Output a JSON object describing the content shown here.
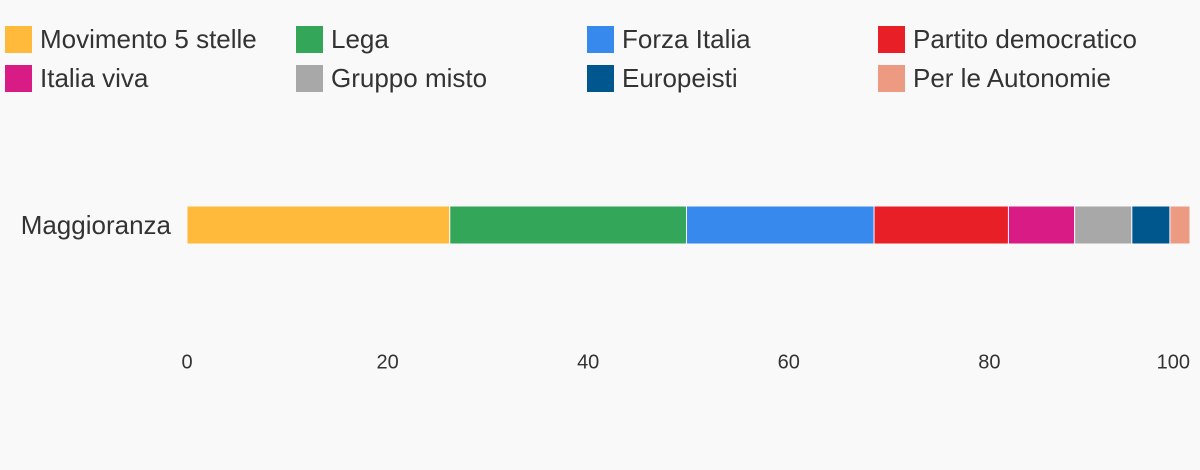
{
  "chart_data": {
    "type": "stacked-bar-horizontal",
    "categories": [
      "Maggioranza"
    ],
    "series": [
      {
        "name": "Movimento 5 stelle",
        "color": "#ffb93b",
        "values": [
          26.2
        ]
      },
      {
        "name": "Lega",
        "color": "#33a65a",
        "values": [
          23.6
        ]
      },
      {
        "name": "Forza Italia",
        "color": "#3789ed",
        "values": [
          18.7
        ]
      },
      {
        "name": "Partito democratico",
        "color": "#e81f26",
        "values": [
          13.4
        ]
      },
      {
        "name": "Italia viva",
        "color": "#d81b85",
        "values": [
          6.6
        ]
      },
      {
        "name": "Gruppo misto",
        "color": "#a8a8a8",
        "values": [
          5.7
        ]
      },
      {
        "name": "Europeisti",
        "color": "#00578e",
        "values": [
          3.8
        ]
      },
      {
        "name": "Per le Autonomie",
        "color": "#ec9a82",
        "values": [
          2.0
        ]
      }
    ],
    "xlim": [
      0,
      100
    ],
    "xticks": [
      0,
      20,
      40,
      60,
      80,
      100
    ],
    "grid": false
  }
}
